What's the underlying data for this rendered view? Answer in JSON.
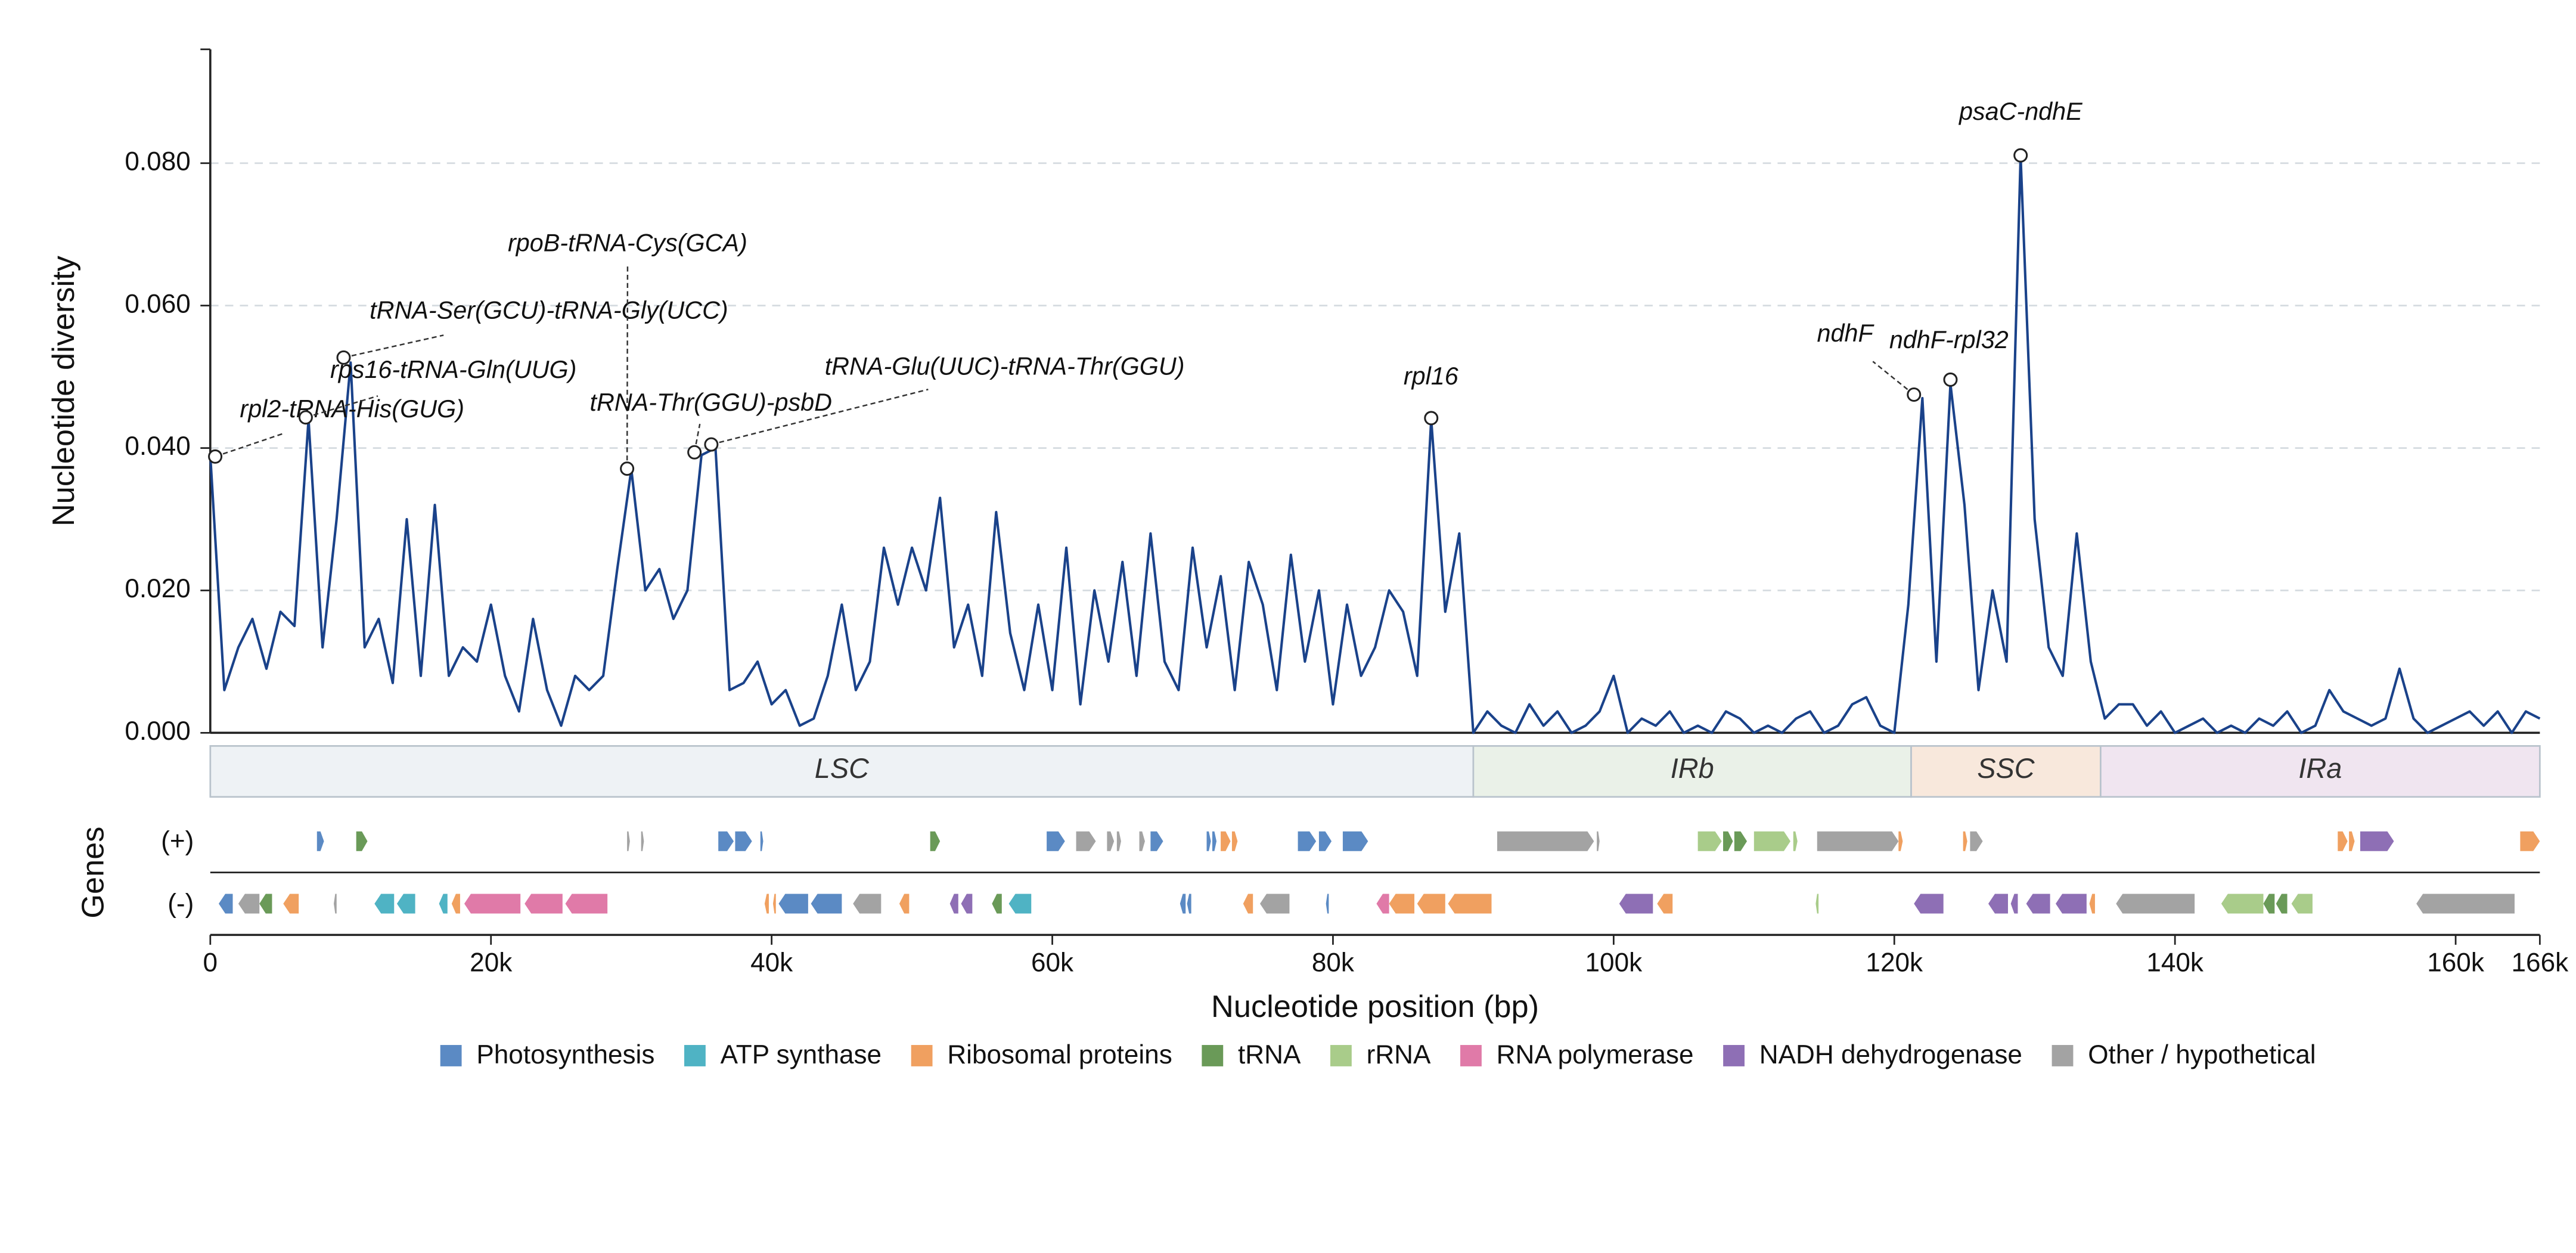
{
  "chart_data": {
    "type": "line",
    "ylabel": "Nucleotide diversity",
    "xlabel": "Nucleotide position (bp)",
    "gene_axis_label": "Genes",
    "strand_labels": [
      "(+)",
      "(-)"
    ],
    "color": "#1a428a",
    "xlim": [
      0,
      166000
    ],
    "ylim": [
      0,
      0.096
    ],
    "xticks": [
      0,
      {
        "value": 20000,
        "label": "20k"
      },
      {
        "value": 40000,
        "label": "40k"
      },
      {
        "value": 60000,
        "label": "60k"
      },
      {
        "value": 80000,
        "label": "80k"
      },
      {
        "value": 100000,
        "label": "100k"
      },
      {
        "value": 120000,
        "label": "120k"
      },
      {
        "value": 140000,
        "label": "140k"
      },
      {
        "value": 160000,
        "label": "160k"
      },
      {
        "value": 166000,
        "label": "166k"
      }
    ],
    "yticks": [
      {
        "value": 0,
        "label": "0.000"
      },
      {
        "value": 0.02,
        "label": "0.020"
      },
      {
        "value": 0.04,
        "label": "0.040"
      },
      {
        "value": 0.06,
        "label": "0.060"
      },
      {
        "value": 0.08,
        "label": "0.080"
      }
    ],
    "grid": true,
    "x": [
      0,
      1000,
      2000,
      3000,
      4000,
      5000,
      6000,
      7000,
      8000,
      9000,
      10000,
      11000,
      12000,
      13000,
      14000,
      15000,
      16000,
      17000,
      18000,
      19000,
      20000,
      21000,
      22000,
      23000,
      24000,
      25000,
      26000,
      27000,
      28000,
      29000,
      30000,
      31000,
      32000,
      33000,
      34000,
      35000,
      36000,
      37000,
      38000,
      39000,
      40000,
      41000,
      42000,
      43000,
      44000,
      45000,
      46000,
      47000,
      48000,
      49000,
      50000,
      51000,
      52000,
      53000,
      54000,
      55000,
      56000,
      57000,
      58000,
      59000,
      60000,
      61000,
      62000,
      63000,
      64000,
      65000,
      66000,
      67000,
      68000,
      69000,
      70000,
      71000,
      72000,
      73000,
      74000,
      75000,
      76000,
      77000,
      78000,
      79000,
      80000,
      81000,
      82000,
      83000,
      84000,
      85000,
      86000,
      87000,
      88000,
      89000,
      90000,
      91000,
      92000,
      93000,
      94000,
      95000,
      96000,
      97000,
      98000,
      99000,
      100000,
      101000,
      102000,
      103000,
      104000,
      105000,
      106000,
      107000,
      108000,
      109000,
      110000,
      111000,
      112000,
      113000,
      114000,
      115000,
      116000,
      117000,
      118000,
      119000,
      120000,
      121000,
      122000,
      123000,
      124000,
      125000,
      126000,
      127000,
      128000,
      129000,
      130000,
      131000,
      132000,
      133000,
      134000,
      135000,
      136000,
      137000,
      138000,
      139000,
      140000,
      141000,
      142000,
      143000,
      144000,
      145000,
      146000,
      147000,
      148000,
      149000,
      150000,
      151000,
      152000,
      153000,
      154000,
      155000,
      156000,
      157000,
      158000,
      159000,
      160000,
      161000,
      162000,
      163000,
      164000,
      165000,
      166000
    ],
    "values": [
      0.039,
      0.006,
      0.012,
      0.016,
      0.009,
      0.017,
      0.015,
      0.044,
      0.012,
      0.03,
      0.052,
      0.012,
      0.016,
      0.007,
      0.03,
      0.008,
      0.032,
      0.008,
      0.012,
      0.01,
      0.018,
      0.008,
      0.003,
      0.016,
      0.006,
      0.001,
      0.008,
      0.006,
      0.008,
      0.023,
      0.037,
      0.02,
      0.023,
      0.016,
      0.02,
      0.039,
      0.04,
      0.006,
      0.007,
      0.01,
      0.004,
      0.006,
      0.001,
      0.002,
      0.008,
      0.018,
      0.006,
      0.01,
      0.026,
      0.018,
      0.026,
      0.02,
      0.033,
      0.012,
      0.018,
      0.008,
      0.031,
      0.014,
      0.006,
      0.018,
      0.006,
      0.026,
      0.004,
      0.02,
      0.01,
      0.024,
      0.008,
      0.028,
      0.01,
      0.006,
      0.026,
      0.012,
      0.022,
      0.006,
      0.024,
      0.018,
      0.006,
      0.025,
      0.01,
      0.02,
      0.004,
      0.018,
      0.008,
      0.012,
      0.02,
      0.017,
      0.008,
      0.044,
      0.017,
      0.028,
      0.0,
      0.003,
      0.001,
      0.0,
      0.004,
      0.001,
      0.003,
      0.0,
      0.001,
      0.003,
      0.008,
      0.0,
      0.002,
      0.001,
      0.003,
      0.0,
      0.001,
      0.0,
      0.003,
      0.002,
      0.0,
      0.001,
      0.0,
      0.002,
      0.003,
      0.0,
      0.001,
      0.004,
      0.005,
      0.001,
      0.0,
      0.018,
      0.047,
      0.01,
      0.049,
      0.032,
      0.006,
      0.02,
      0.01,
      0.081,
      0.03,
      0.012,
      0.008,
      0.028,
      0.01,
      0.002,
      0.004,
      0.004,
      0.001,
      0.003,
      0.0,
      0.001,
      0.002,
      0.0,
      0.001,
      0.0,
      0.002,
      0.001,
      0.003,
      0.0,
      0.001,
      0.006,
      0.003,
      0.002,
      0.001,
      0.002,
      0.009,
      0.002,
      0.0,
      0.001,
      0.002,
      0.003,
      0.001,
      0.003,
      0.0,
      0.003,
      0.002
    ],
    "annotations": [
      {
        "label": "rpl2-tRNA-His(GUG)",
        "x": 350,
        "y": 0.0388
      },
      {
        "label": "rps16-tRNA-Gln(UUG)",
        "x": 6800,
        "y": 0.0443
      },
      {
        "label": "tRNA-Ser(GCU)-tRNA-Gly(UCC)",
        "x": 9500,
        "y": 0.0527
      },
      {
        "label": "rpoB-tRNA-Cys(GCA)",
        "x": 29700,
        "y": 0.0371
      },
      {
        "label": "tRNA-Thr(GGU)-psbD",
        "x": 34500,
        "y": 0.0394
      },
      {
        "label": "tRNA-Glu(UUC)-tRNA-Thr(GGU)",
        "x": 35700,
        "y": 0.0405
      },
      {
        "label": "rpl16",
        "x": 87000,
        "y": 0.0442
      },
      {
        "label": "ndhF",
        "x": 121400,
        "y": 0.0475
      },
      {
        "label": "ndhF-rpl32",
        "x": 124000,
        "y": 0.0496
      },
      {
        "label": "psaC-ndhE",
        "x": 129000,
        "y": 0.0811
      }
    ],
    "regions": [
      {
        "name": "LSC",
        "start": 0,
        "end": 90000,
        "color": "#eef2f5"
      },
      {
        "name": "IRb",
        "start": 90000,
        "end": 121200,
        "color": "#eaf1e8"
      },
      {
        "name": "SSC",
        "start": 121200,
        "end": 134700,
        "color": "#f8e8dc"
      },
      {
        "name": "IRa",
        "start": 134700,
        "end": 166000,
        "color": "#f0e5f0"
      }
    ],
    "gene_tracks": [
      {
        "name": "Photosynthesis",
        "color": "#5b8ac4",
        "plus": [
          [
            7600,
            8100
          ],
          [
            36200,
            37300
          ],
          [
            37400,
            38600
          ],
          [
            39200,
            39400
          ],
          [
            59600,
            60900
          ],
          [
            67000,
            67900
          ],
          [
            71000,
            71300
          ],
          [
            71400,
            71700
          ],
          [
            77500,
            78800
          ],
          [
            79000,
            79900
          ],
          [
            80700,
            82500
          ]
        ],
        "minus": [
          [
            600,
            1600
          ],
          [
            40500,
            42600
          ],
          [
            42800,
            45000
          ],
          [
            69100,
            69500
          ],
          [
            69600,
            69900
          ],
          [
            79500,
            79700
          ]
        ]
      },
      {
        "name": "ATP synthase",
        "color": "#4fb3c4",
        "plus": [],
        "minus": [
          [
            11700,
            13100
          ],
          [
            13300,
            14600
          ],
          [
            16300,
            16900
          ],
          [
            56900,
            58500
          ]
        ]
      },
      {
        "name": "Ribosomal proteins",
        "color": "#f0a060",
        "plus": [
          [
            72000,
            72700
          ],
          [
            72800,
            73200
          ],
          [
            120300,
            120600
          ],
          [
            124900,
            125200
          ],
          [
            151600,
            152300
          ],
          [
            152400,
            152800
          ],
          [
            164600,
            166000
          ]
        ],
        "minus": [
          [
            5200,
            6300
          ],
          [
            17200,
            17800
          ],
          [
            39500,
            39800
          ],
          [
            40100,
            40300
          ],
          [
            49100,
            49800
          ],
          [
            73600,
            74300
          ],
          [
            84000,
            85800
          ],
          [
            86000,
            88000
          ],
          [
            88200,
            91300
          ],
          [
            103100,
            104200
          ],
          [
            133900,
            134300
          ]
        ]
      },
      {
        "name": "tRNA",
        "color": "#6a9a58",
        "plus": [
          [
            10400,
            11200
          ],
          [
            51300,
            52000
          ],
          [
            107800,
            108500
          ],
          [
            108600,
            109500
          ]
        ],
        "minus": [
          [
            3500,
            4400
          ],
          [
            55700,
            56400
          ],
          [
            146300,
            147100
          ],
          [
            147200,
            148000
          ]
        ]
      },
      {
        "name": "rRNA",
        "color": "#a9cc8a",
        "plus": [
          [
            106000,
            107700
          ],
          [
            110000,
            112600
          ],
          [
            112800,
            113100
          ]
        ],
        "minus": [
          [
            114400,
            114600
          ],
          [
            143300,
            146300
          ],
          [
            148300,
            149800
          ]
        ]
      },
      {
        "name": "RNA polymerase",
        "color": "#e07aa8",
        "plus": [],
        "minus": [
          [
            18100,
            22100
          ],
          [
            22400,
            25100
          ],
          [
            25300,
            28300
          ],
          [
            83100,
            84000
          ]
        ]
      },
      {
        "name": "NADH dehydrogenase",
        "color": "#8e6fb5",
        "plus": [
          [
            153200,
            155600
          ]
        ],
        "minus": [
          [
            52700,
            53300
          ],
          [
            53500,
            54300
          ],
          [
            100400,
            102800
          ],
          [
            121400,
            123500
          ],
          [
            126700,
            128100
          ],
          [
            128300,
            128800
          ],
          [
            129400,
            131100
          ],
          [
            131500,
            133700
          ]
        ]
      },
      {
        "name": "Other / hypothetical",
        "color": "#a3a3a3",
        "plus": [
          [
            29700,
            29900
          ],
          [
            30700,
            30900
          ],
          [
            61700,
            63100
          ],
          [
            63900,
            64400
          ],
          [
            64600,
            64900
          ],
          [
            66200,
            66600
          ],
          [
            91700,
            98600
          ],
          [
            98800,
            99000
          ],
          [
            114500,
            120300
          ],
          [
            125400,
            126300
          ]
        ],
        "minus": [
          [
            2000,
            3500
          ],
          [
            8800,
            9000
          ],
          [
            45800,
            47800
          ],
          [
            74800,
            76900
          ],
          [
            135800,
            141400
          ],
          [
            157200,
            164200
          ]
        ]
      }
    ]
  }
}
